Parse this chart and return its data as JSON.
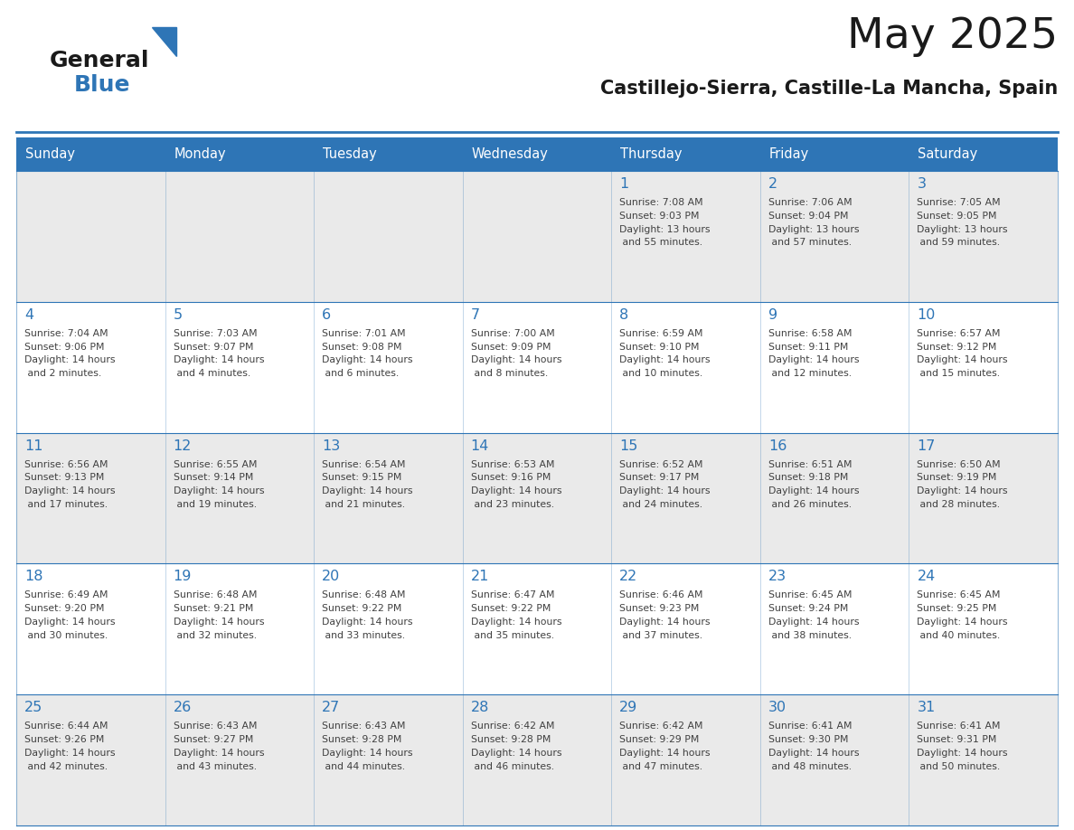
{
  "title": "May 2025",
  "subtitle": "Castillejo-Sierra, Castille-La Mancha, Spain",
  "days_of_week": [
    "Sunday",
    "Monday",
    "Tuesday",
    "Wednesday",
    "Thursday",
    "Friday",
    "Saturday"
  ],
  "header_bg": "#2E75B6",
  "header_text_color": "#FFFFFF",
  "cell_bg_odd": "#EAEAEA",
  "cell_bg_even": "#FFFFFF",
  "day_number_color": "#2E75B6",
  "text_color": "#404040",
  "border_color": "#2E75B6",
  "title_color": "#1a1a1a",
  "subtitle_color": "#1a1a1a",
  "logo_color_general": "#1a1a1a",
  "logo_color_blue": "#2E75B6",
  "logo_triangle_color": "#2E75B6",
  "figwidth": 11.88,
  "figheight": 9.18,
  "dpi": 100,
  "calendar_data": [
    [
      {
        "day": null,
        "sunrise": null,
        "sunset": null,
        "daylight": null
      },
      {
        "day": null,
        "sunrise": null,
        "sunset": null,
        "daylight": null
      },
      {
        "day": null,
        "sunrise": null,
        "sunset": null,
        "daylight": null
      },
      {
        "day": null,
        "sunrise": null,
        "sunset": null,
        "daylight": null
      },
      {
        "day": 1,
        "sunrise": "7:08 AM",
        "sunset": "9:03 PM",
        "daylight": "13 hours and 55 minutes."
      },
      {
        "day": 2,
        "sunrise": "7:06 AM",
        "sunset": "9:04 PM",
        "daylight": "13 hours and 57 minutes."
      },
      {
        "day": 3,
        "sunrise": "7:05 AM",
        "sunset": "9:05 PM",
        "daylight": "13 hours and 59 minutes."
      }
    ],
    [
      {
        "day": 4,
        "sunrise": "7:04 AM",
        "sunset": "9:06 PM",
        "daylight": "14 hours and 2 minutes."
      },
      {
        "day": 5,
        "sunrise": "7:03 AM",
        "sunset": "9:07 PM",
        "daylight": "14 hours and 4 minutes."
      },
      {
        "day": 6,
        "sunrise": "7:01 AM",
        "sunset": "9:08 PM",
        "daylight": "14 hours and 6 minutes."
      },
      {
        "day": 7,
        "sunrise": "7:00 AM",
        "sunset": "9:09 PM",
        "daylight": "14 hours and 8 minutes."
      },
      {
        "day": 8,
        "sunrise": "6:59 AM",
        "sunset": "9:10 PM",
        "daylight": "14 hours and 10 minutes."
      },
      {
        "day": 9,
        "sunrise": "6:58 AM",
        "sunset": "9:11 PM",
        "daylight": "14 hours and 12 minutes."
      },
      {
        "day": 10,
        "sunrise": "6:57 AM",
        "sunset": "9:12 PM",
        "daylight": "14 hours and 15 minutes."
      }
    ],
    [
      {
        "day": 11,
        "sunrise": "6:56 AM",
        "sunset": "9:13 PM",
        "daylight": "14 hours and 17 minutes."
      },
      {
        "day": 12,
        "sunrise": "6:55 AM",
        "sunset": "9:14 PM",
        "daylight": "14 hours and 19 minutes."
      },
      {
        "day": 13,
        "sunrise": "6:54 AM",
        "sunset": "9:15 PM",
        "daylight": "14 hours and 21 minutes."
      },
      {
        "day": 14,
        "sunrise": "6:53 AM",
        "sunset": "9:16 PM",
        "daylight": "14 hours and 23 minutes."
      },
      {
        "day": 15,
        "sunrise": "6:52 AM",
        "sunset": "9:17 PM",
        "daylight": "14 hours and 24 minutes."
      },
      {
        "day": 16,
        "sunrise": "6:51 AM",
        "sunset": "9:18 PM",
        "daylight": "14 hours and 26 minutes."
      },
      {
        "day": 17,
        "sunrise": "6:50 AM",
        "sunset": "9:19 PM",
        "daylight": "14 hours and 28 minutes."
      }
    ],
    [
      {
        "day": 18,
        "sunrise": "6:49 AM",
        "sunset": "9:20 PM",
        "daylight": "14 hours and 30 minutes."
      },
      {
        "day": 19,
        "sunrise": "6:48 AM",
        "sunset": "9:21 PM",
        "daylight": "14 hours and 32 minutes."
      },
      {
        "day": 20,
        "sunrise": "6:48 AM",
        "sunset": "9:22 PM",
        "daylight": "14 hours and 33 minutes."
      },
      {
        "day": 21,
        "sunrise": "6:47 AM",
        "sunset": "9:22 PM",
        "daylight": "14 hours and 35 minutes."
      },
      {
        "day": 22,
        "sunrise": "6:46 AM",
        "sunset": "9:23 PM",
        "daylight": "14 hours and 37 minutes."
      },
      {
        "day": 23,
        "sunrise": "6:45 AM",
        "sunset": "9:24 PM",
        "daylight": "14 hours and 38 minutes."
      },
      {
        "day": 24,
        "sunrise": "6:45 AM",
        "sunset": "9:25 PM",
        "daylight": "14 hours and 40 minutes."
      }
    ],
    [
      {
        "day": 25,
        "sunrise": "6:44 AM",
        "sunset": "9:26 PM",
        "daylight": "14 hours and 42 minutes."
      },
      {
        "day": 26,
        "sunrise": "6:43 AM",
        "sunset": "9:27 PM",
        "daylight": "14 hours and 43 minutes."
      },
      {
        "day": 27,
        "sunrise": "6:43 AM",
        "sunset": "9:28 PM",
        "daylight": "14 hours and 44 minutes."
      },
      {
        "day": 28,
        "sunrise": "6:42 AM",
        "sunset": "9:28 PM",
        "daylight": "14 hours and 46 minutes."
      },
      {
        "day": 29,
        "sunrise": "6:42 AM",
        "sunset": "9:29 PM",
        "daylight": "14 hours and 47 minutes."
      },
      {
        "day": 30,
        "sunrise": "6:41 AM",
        "sunset": "9:30 PM",
        "daylight": "14 hours and 48 minutes."
      },
      {
        "day": 31,
        "sunrise": "6:41 AM",
        "sunset": "9:31 PM",
        "daylight": "14 hours and 50 minutes."
      }
    ]
  ]
}
